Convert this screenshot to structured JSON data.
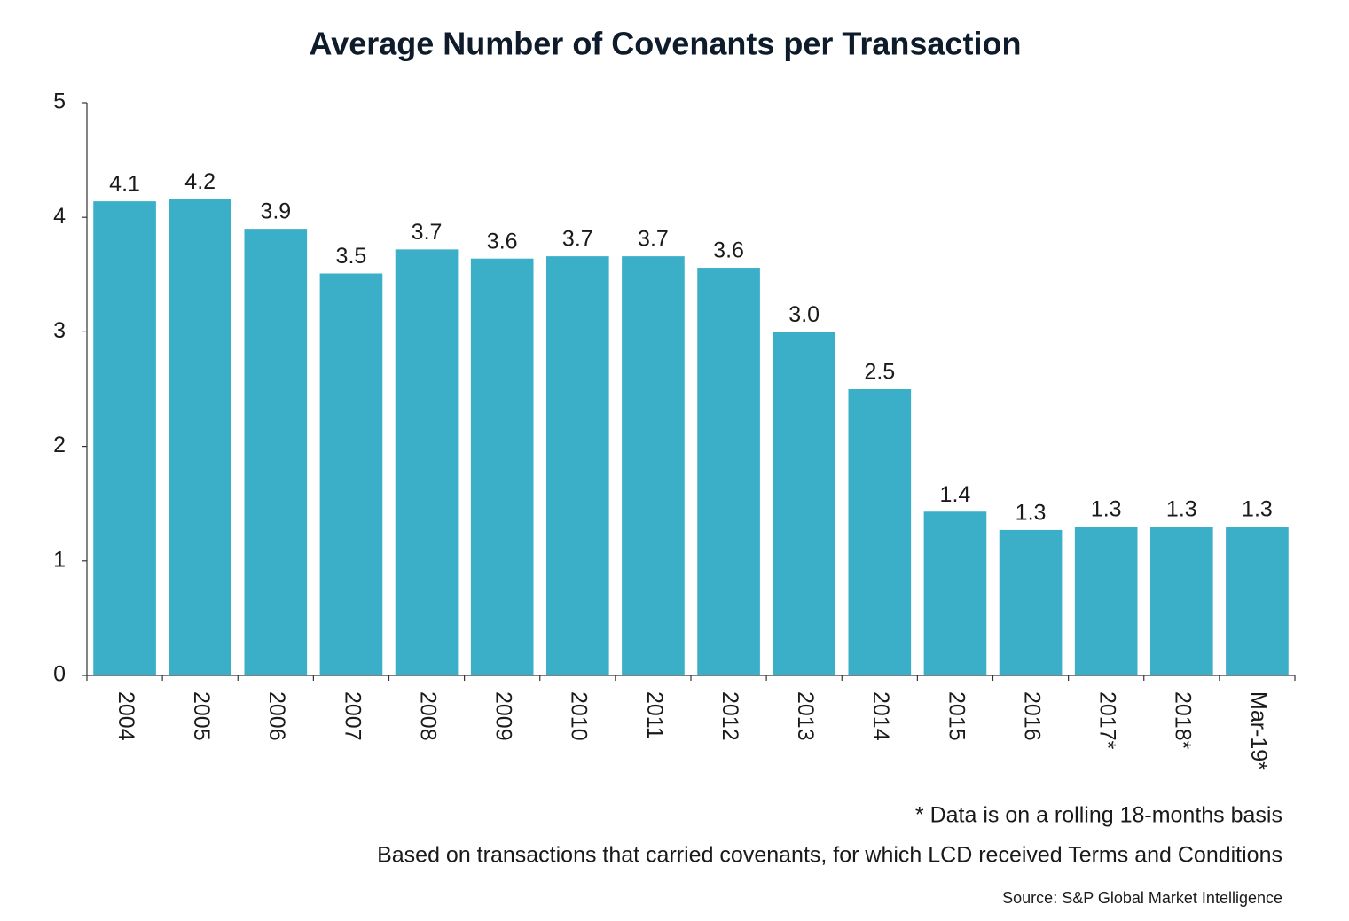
{
  "chart_data": {
    "type": "bar",
    "title": "Average Number of Covenants per Transaction",
    "categories": [
      "2004",
      "2005",
      "2006",
      "2007",
      "2008",
      "2009",
      "2010",
      "2011",
      "2012",
      "2013",
      "2014",
      "2015",
      "2016",
      "2017*",
      "2018*",
      "Mar-19*"
    ],
    "values": [
      4.14,
      4.16,
      3.9,
      3.51,
      3.72,
      3.64,
      3.66,
      3.66,
      3.56,
      3.0,
      2.5,
      1.43,
      1.27,
      1.3,
      1.3,
      1.3
    ],
    "value_labels": [
      "4.1",
      "4.2",
      "3.9",
      "3.5",
      "3.7",
      "3.6",
      "3.7",
      "3.7",
      "3.6",
      "3.0",
      "2.5",
      "1.4",
      "1.3",
      "1.3",
      "1.3",
      "1.3"
    ],
    "color": "#3bafc8",
    "ylim": [
      0,
      5
    ],
    "yticks": [
      0,
      1,
      2,
      3,
      4,
      5
    ],
    "grid": false,
    "notes": [
      "* Data is on a rolling 18-months basis",
      "Based on transactions that carried covenants, for which LCD received Terms and Conditions"
    ],
    "source": "Source: S&P Global Market Intelligence"
  }
}
